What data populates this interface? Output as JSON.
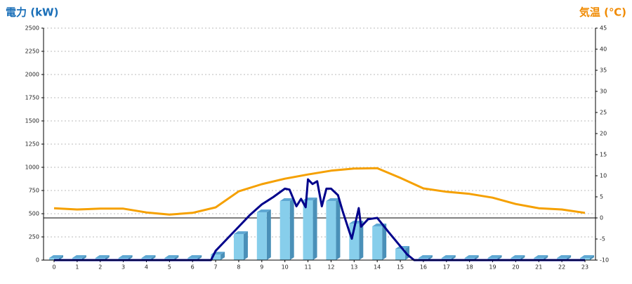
{
  "chart_data": {
    "type": "bar",
    "y_title": "電力 (kW)",
    "y2_title": "気温 (℃)",
    "categories": [
      "0",
      "1",
      "2",
      "3",
      "4",
      "5",
      "6",
      "7",
      "8",
      "9",
      "10",
      "11",
      "12",
      "13",
      "14",
      "15",
      "16",
      "17",
      "18",
      "19",
      "20",
      "21",
      "22",
      "23"
    ],
    "ylim": [
      0,
      2500
    ],
    "yticks": [
      0,
      250,
      500,
      750,
      1000,
      1250,
      1500,
      1750,
      2000,
      2250,
      2500
    ],
    "y2lim": [
      -10,
      45
    ],
    "y2ticks": [
      -10,
      -5,
      0,
      5,
      10,
      15,
      20,
      25,
      30,
      35,
      40,
      45
    ],
    "grid": true,
    "series": [
      {
        "type": "bar",
        "color": "#87ceeb",
        "values": [
          0,
          0,
          0,
          0,
          0,
          0,
          0,
          60,
          280,
          515,
          636,
          644,
          636,
          394,
          364,
          121,
          0,
          0,
          0,
          0,
          0,
          0,
          0,
          0
        ]
      },
      {
        "type": "line",
        "axis": "y2",
        "color": "#f5a000",
        "values": [
          2.3,
          2.0,
          2.2,
          2.2,
          1.3,
          0.8,
          1.2,
          2.5,
          6.3,
          8.0,
          9.3,
          10.3,
          11.2,
          11.7,
          11.8,
          9.5,
          7.0,
          6.2,
          5.7,
          4.8,
          3.3,
          2.3,
          2.0,
          1.2
        ]
      },
      {
        "type": "line",
        "color": "#00008b",
        "x": [
          0,
          6.8,
          7,
          7.5,
          8,
          8.5,
          9,
          9.5,
          10,
          10.2,
          10.5,
          10.7,
          10.9,
          11,
          11.2,
          11.4,
          11.6,
          11.8,
          12,
          12.3,
          12.5,
          12.8,
          12.9,
          13.2,
          13.3,
          13.6,
          14,
          14.5,
          15,
          15.3,
          15.6,
          23
        ],
        "values": [
          0,
          0,
          100,
          230,
          360,
          490,
          600,
          680,
          770,
          760,
          580,
          660,
          570,
          870,
          820,
          850,
          580,
          770,
          770,
          700,
          530,
          300,
          230,
          560,
          360,
          440,
          455,
          300,
          150,
          60,
          0,
          0
        ]
      }
    ]
  }
}
